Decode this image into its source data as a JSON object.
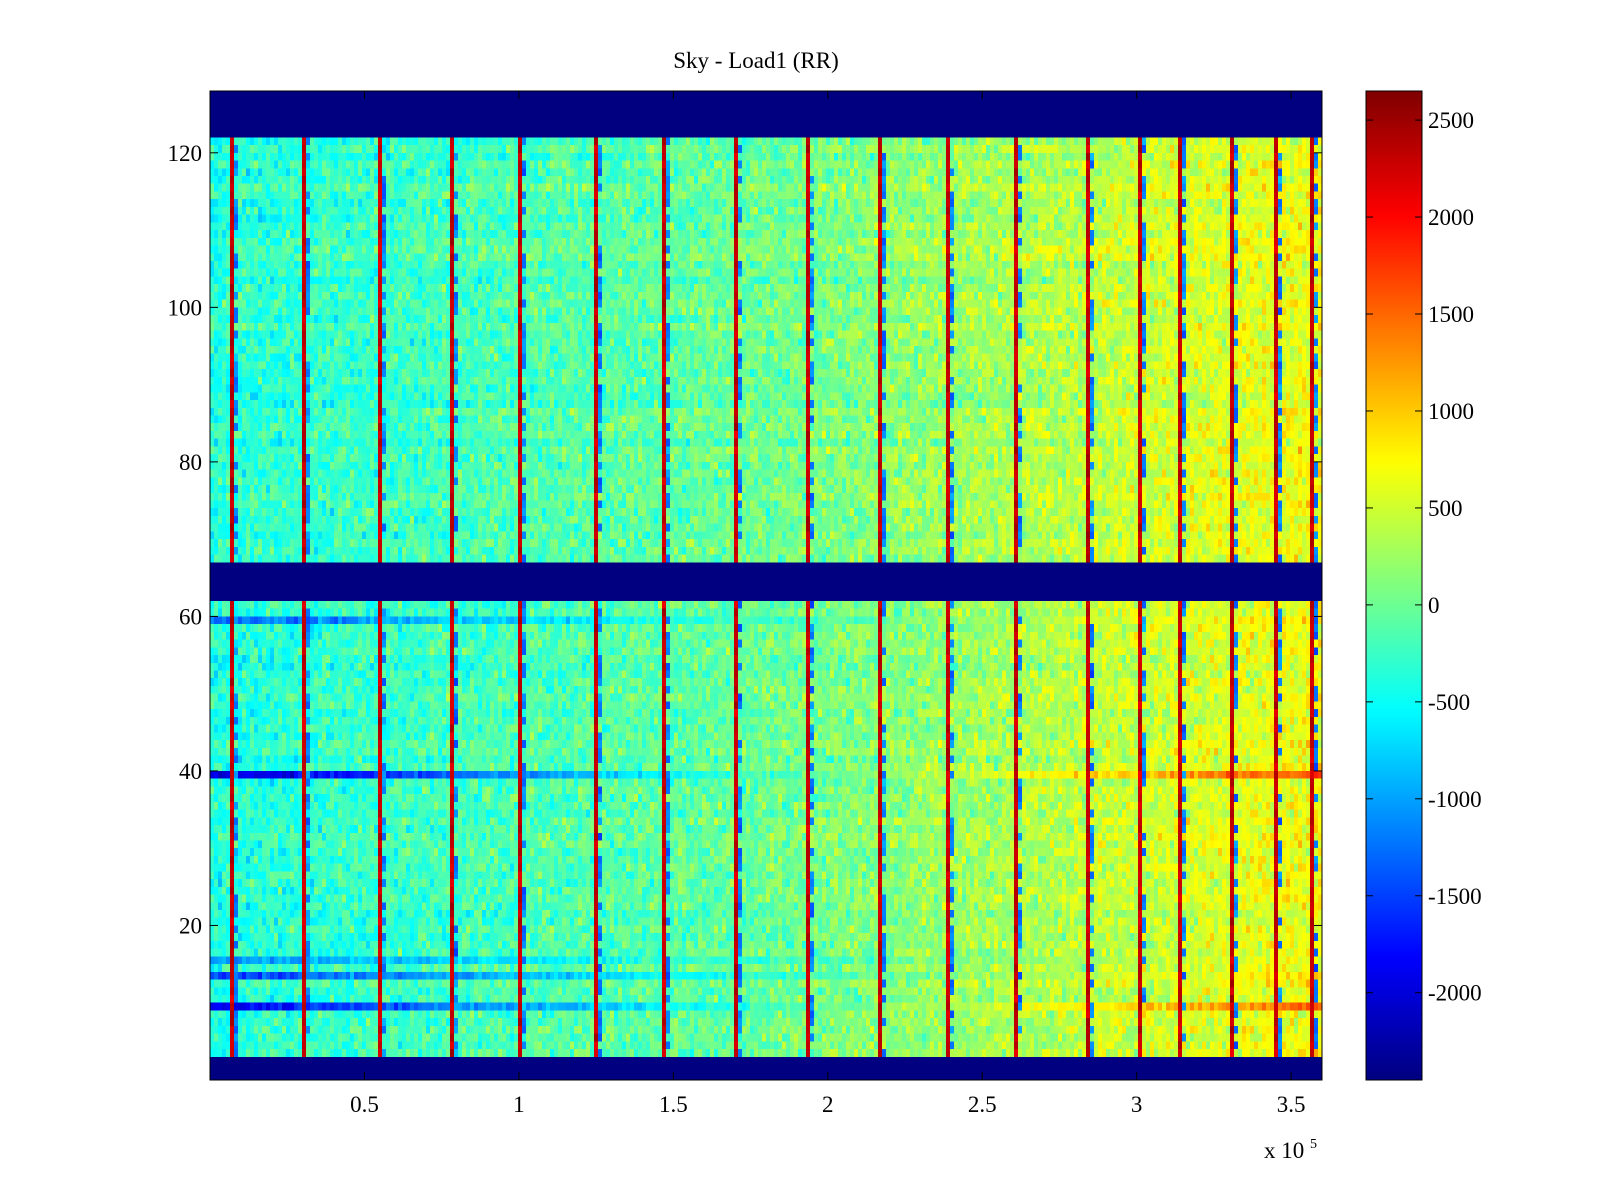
{
  "chart_data": {
    "type": "heatmap",
    "title": "Sky - Load1 (RR)",
    "xlabel": "",
    "ylabel": "",
    "xlim": [
      0,
      360000
    ],
    "ylim": [
      0,
      128
    ],
    "x_ticks": [
      0.5,
      1,
      1.5,
      2,
      2.5,
      3,
      3.5
    ],
    "x_tick_labels": [
      "0.5",
      "1",
      "1.5",
      "2",
      "2.5",
      "3",
      "3.5"
    ],
    "x_exponent_prefix": "x 10",
    "x_exponent": "5",
    "y_ticks": [
      20,
      40,
      60,
      80,
      100,
      120
    ],
    "y_tick_labels": [
      "20",
      "40",
      "60",
      "80",
      "100",
      "120"
    ],
    "colormap": "jet",
    "clim": [
      -2450,
      2650
    ],
    "colorbar_ticks": [
      2500,
      2000,
      1500,
      1000,
      500,
      0,
      -500,
      -1000,
      -1500,
      -2000
    ],
    "colorbar_tick_labels": [
      "2500",
      "2000",
      "1500",
      "1000",
      "500",
      "0",
      "-500",
      "-1000",
      "-1500",
      "-2000"
    ],
    "masked_rows": [
      [
        0,
        3
      ],
      [
        62,
        67
      ],
      [
        122,
        128
      ]
    ],
    "vertical_stripes_x": [
      7000,
      30000,
      54000,
      78000,
      100000,
      124000,
      146000,
      170000,
      193000,
      216000,
      238000,
      260000,
      283000,
      300000,
      313000,
      330000,
      345000,
      356000
    ],
    "baseline_trend": {
      "x": [
        0,
        180000,
        360000
      ],
      "value": [
        -350,
        0,
        700
      ]
    },
    "anomalous_rows": [
      {
        "row": 39,
        "left_value": -2100,
        "right_value": 1700
      },
      {
        "row": 9,
        "left_value": -1900,
        "right_value": 1500
      },
      {
        "row": 13,
        "left_value": -1500,
        "right_value": 900
      },
      {
        "row": 15,
        "left_value": -1100,
        "right_value": 700
      },
      {
        "row": 59,
        "left_value": -1300,
        "right_value": 900
      }
    ]
  },
  "colors": {
    "axes": "#000000",
    "background": "#ffffff",
    "masked": "#00008f"
  }
}
